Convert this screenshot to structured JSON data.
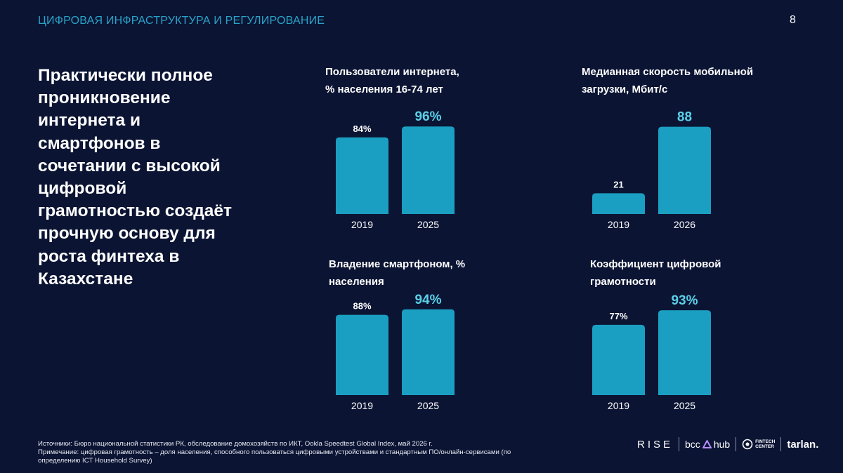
{
  "header": {
    "title": "ЦИФРОВАЯ ИНФРАСТРУКТУРА И РЕГУЛИРОВАНИЕ",
    "page_number": "8"
  },
  "headline": {
    "lines": [
      "Практически полное",
      "проникновение",
      "интернета и",
      "смартфонов в",
      "сочетании с высокой",
      "цифровой",
      "грамотностью создаёт",
      "прочную основу для",
      "роста финтеха в",
      "Казахстане"
    ]
  },
  "colors": {
    "background": "#0b1433",
    "bar": "#1a9fc2",
    "highlight_label": "#5ad0e8",
    "header_accent": "#29a3c8"
  },
  "chart_data": [
    {
      "type": "bar",
      "title_lines": [
        "Пользователи интернета,",
        "% населения 16-74 лет"
      ],
      "categories": [
        "2019",
        "2025"
      ],
      "values": [
        84,
        96
      ],
      "labels": [
        "84%",
        "96%"
      ],
      "ylim": [
        0,
        100
      ]
    },
    {
      "type": "bar",
      "title_lines": [
        "Медианная скорость мобильной",
        "загрузки, Мбит/с"
      ],
      "categories": [
        "2019",
        "2026"
      ],
      "values": [
        21,
        88
      ],
      "labels": [
        "21",
        "88"
      ],
      "ylim": [
        0,
        92
      ]
    },
    {
      "type": "bar",
      "title_lines": [
        "Владение смартфоном, %",
        "населения"
      ],
      "categories": [
        "2019",
        "2025"
      ],
      "values": [
        88,
        94
      ],
      "labels": [
        "88%",
        "94%"
      ],
      "ylim": [
        0,
        100
      ]
    },
    {
      "type": "bar",
      "title_lines": [
        "Коэффициент цифровой",
        "грамотности"
      ],
      "categories": [
        "2019",
        "2025"
      ],
      "values": [
        77,
        93
      ],
      "labels": [
        "77%",
        "93%"
      ],
      "ylim": [
        0,
        100
      ]
    }
  ],
  "footer": {
    "lines": [
      "Источники: Бюро национальной статистики РК, обследование домохозяйств по ИКТ, Ookla Speedtest Global Index, май 2026 г.",
      "Примечание: цифровая грамотность – доля населения, способного пользоваться цифровыми устройствами и стандартным ПО/онлайн-сервисами (по",
      "определению ICT Household Survey)"
    ]
  },
  "logos": {
    "rise": "RISE",
    "bcc": "bcc",
    "hub": "hub",
    "fintech_line1": "FINTECH",
    "fintech_line2": "CENTER",
    "tarlan": "tarlan."
  }
}
